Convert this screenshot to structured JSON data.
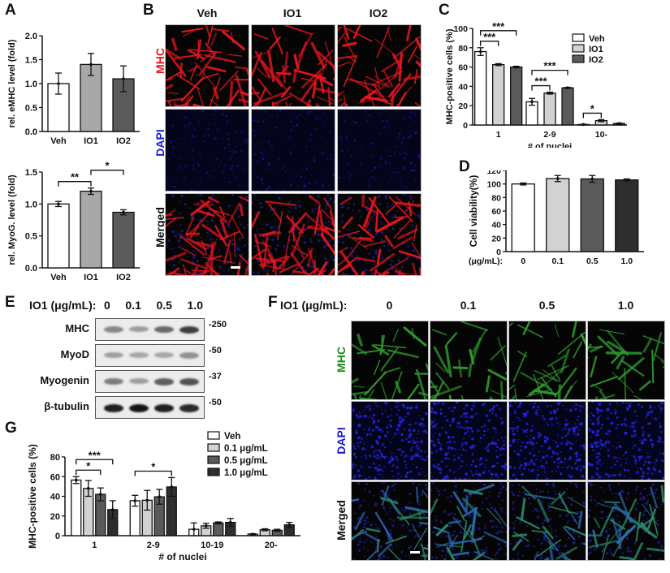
{
  "panels": {
    "A": {
      "label": "A"
    },
    "B": {
      "label": "B"
    },
    "C": {
      "label": "C"
    },
    "D": {
      "label": "D"
    },
    "E": {
      "label": "E"
    },
    "F": {
      "label": "F"
    },
    "G": {
      "label": "G"
    }
  },
  "panelB": {
    "columns": [
      "Veh",
      "IO1",
      "IO2"
    ],
    "rows": [
      "MHC",
      "DAPI",
      "Merged"
    ],
    "row_colors": [
      "#e8191c",
      "#1a1ad0",
      "#111111"
    ]
  },
  "panelE": {
    "conc_label": "IO1 (μg/mL):",
    "concentrations": [
      "0",
      "0.1",
      "0.5",
      "1.0"
    ],
    "bands": [
      {
        "name": "MHC",
        "mw": "-250",
        "intensity": [
          0.45,
          0.35,
          0.6,
          0.8
        ]
      },
      {
        "name": "MyoD",
        "mw": "-50",
        "intensity": [
          0.35,
          0.3,
          0.3,
          0.4
        ]
      },
      {
        "name": "Myogenin",
        "mw": "-37",
        "intensity": [
          0.5,
          0.35,
          0.65,
          0.7
        ]
      },
      {
        "name": "β-tubulin",
        "mw": "-50",
        "intensity": [
          0.95,
          1.0,
          0.95,
          0.9
        ]
      }
    ]
  },
  "panelF": {
    "conc_label": "IO1 (μg/mL):",
    "columns": [
      "0",
      "0.1",
      "0.5",
      "1.0"
    ],
    "rows": [
      "MHC",
      "DAPI",
      "Merged"
    ],
    "row_colors": [
      "#1e8a1e",
      "#1a1ad0",
      "#111111"
    ]
  },
  "chart_data": [
    {
      "id": "A-top",
      "type": "bar",
      "categories": [
        "Veh",
        "IO1",
        "IO2"
      ],
      "values": [
        1.0,
        1.4,
        1.1
      ],
      "errors": [
        0.22,
        0.23,
        0.27
      ],
      "colors": [
        "#ffffff",
        "#a8a8a8",
        "#5a5a5a"
      ],
      "ylabel": "rel. eMHC level (fold)",
      "ylim": [
        0,
        2.0
      ],
      "yticks": [
        "0.0",
        "0.5",
        "1.0",
        "1.5",
        "2.0"
      ],
      "significance": []
    },
    {
      "id": "A-bottom",
      "type": "bar",
      "categories": [
        "Veh",
        "IO1",
        "IO2"
      ],
      "values": [
        1.0,
        1.2,
        0.87
      ],
      "errors": [
        0.04,
        0.05,
        0.04
      ],
      "colors": [
        "#ffffff",
        "#a8a8a8",
        "#5a5a5a"
      ],
      "ylabel": "rel. MyoG. level (fold)",
      "ylim": [
        0,
        1.5
      ],
      "yticks": [
        "0.0",
        "0.5",
        "1.0",
        "1.5"
      ],
      "significance": [
        {
          "from": "Veh",
          "to": "IO1",
          "mark": "**"
        },
        {
          "from": "IO1",
          "to": "IO2",
          "mark": "*"
        }
      ]
    },
    {
      "id": "C",
      "type": "bar",
      "categories": [
        "1",
        "2-9",
        "10-"
      ],
      "series": [
        {
          "name": "Veh",
          "values": [
            76,
            24,
            0.5
          ],
          "errors": [
            4,
            3.5,
            0.3
          ],
          "color": "#ffffff"
        },
        {
          "name": "IO1",
          "values": [
            62.5,
            33,
            4.5
          ],
          "errors": [
            1,
            1,
            1
          ],
          "color": "#d2d2d2"
        },
        {
          "name": "IO2",
          "values": [
            60,
            38.5,
            1.5
          ],
          "errors": [
            0.8,
            0.5,
            0.5
          ],
          "color": "#5a5a5a"
        }
      ],
      "xlabel": "# of nuclei",
      "ylabel": "MHC-positive cells (%)",
      "ylim": [
        0,
        100
      ],
      "yticks": [
        "0",
        "20",
        "40",
        "60",
        "80",
        "100"
      ],
      "legend": [
        "Veh",
        "IO1",
        "IO2"
      ],
      "legend_position": "upper right",
      "significance": [
        {
          "group": "1",
          "from": "Veh",
          "to": "IO1",
          "mark": "***"
        },
        {
          "group": "1",
          "from": "Veh",
          "to": "IO2",
          "mark": "***"
        },
        {
          "group": "2-9",
          "from": "Veh",
          "to": "IO1",
          "mark": "***"
        },
        {
          "group": "2-9",
          "from": "Veh",
          "to": "IO2",
          "mark": "***"
        },
        {
          "group": "10-",
          "from": "Veh",
          "to": "IO1",
          "mark": "*"
        }
      ]
    },
    {
      "id": "D",
      "type": "bar",
      "xlabel_prefix": "IO1 (μg/mL):",
      "categories": [
        "0",
        "0.1",
        "0.5",
        "1.0"
      ],
      "values": [
        100,
        108,
        107.5,
        106
      ],
      "errors": [
        1.5,
        4.5,
        5,
        1.5
      ],
      "colors": [
        "#ffffff",
        "#d2d2d2",
        "#5a5a5a",
        "#2e2e2e"
      ],
      "ylabel": "Cell viability(%)",
      "ylim": [
        0,
        120
      ],
      "yticks": [
        "0",
        "20",
        "40",
        "60",
        "80",
        "100",
        "120"
      ],
      "significance_marks": [
        "",
        "*",
        "*",
        ""
      ]
    },
    {
      "id": "G",
      "type": "bar",
      "categories": [
        "1",
        "2-9",
        "10-19",
        "20-"
      ],
      "series": [
        {
          "name": "Veh",
          "values": [
            56.5,
            35.5,
            6.5,
            1.5
          ],
          "errors": [
            3.5,
            5.5,
            6.5,
            0.5
          ],
          "color": "#ffffff"
        },
        {
          "name": "0.1 μg/mL",
          "values": [
            48,
            36,
            10,
            6
          ],
          "errors": [
            8,
            10,
            2.5,
            1
          ],
          "color": "#d2d2d2"
        },
        {
          "name": "0.5 μg/mL",
          "values": [
            42,
            39.5,
            13,
            5.5
          ],
          "errors": [
            6.5,
            7.5,
            1,
            1
          ],
          "color": "#5a5a5a"
        },
        {
          "name": "1.0 μg/mL",
          "values": [
            26.5,
            49.5,
            13.5,
            11
          ],
          "errors": [
            9,
            9.5,
            4,
            2.5
          ],
          "color": "#2e2e2e"
        }
      ],
      "xlabel": "# of nuclei",
      "ylabel": "MHC-positive cells (%)",
      "ylim": [
        0,
        80
      ],
      "yticks": [
        "0",
        "20",
        "40",
        "60",
        "80"
      ],
      "legend": [
        "Veh",
        "0.1 μg/mL",
        "0.5 μg/mL",
        "1.0 μg/mL"
      ],
      "legend_position": "upper right",
      "significance": [
        {
          "group": "1",
          "from": "Veh",
          "to": "0.5 μg/mL",
          "mark": "*"
        },
        {
          "group": "1",
          "from": "Veh",
          "to": "1.0 μg/mL",
          "mark": "***"
        },
        {
          "group": "2-9",
          "from": "Veh",
          "to": "1.0 μg/mL",
          "mark": "*"
        }
      ]
    }
  ]
}
